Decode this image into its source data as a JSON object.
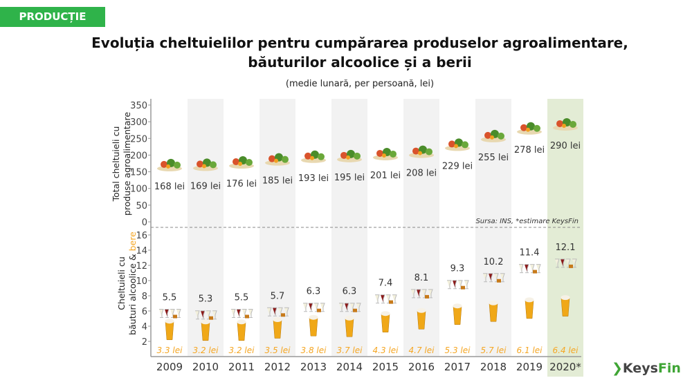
{
  "badge": "PRODUCȚIE",
  "title_line1": "Evoluția cheltuielilor pentru cumpărarea produselor agroalimentare,",
  "title_line2": "băuturilor alcoolice și a berii",
  "subtitle": "(medie lunară, per persoană, lei)",
  "source": "Sursa: INS, *estimare KeysFin",
  "logo": {
    "keys": "Keys",
    "fin": "Fin"
  },
  "colors": {
    "beer": "#f5a623",
    "band_gray": "#f2f2f2",
    "band_highlight": "#e3ecd5",
    "badge": "#2fb34a"
  },
  "chart_data": {
    "type": "pictogram",
    "categories": [
      "2009",
      "2010",
      "2011",
      "2012",
      "2013",
      "2014",
      "2015",
      "2016",
      "2017",
      "2018",
      "2019",
      "2020*"
    ],
    "top": {
      "ylabel_line1": "Total cheltuieli cu",
      "ylabel_line2": "produse agroalimentare",
      "ylim": [
        0,
        350
      ],
      "ticks": [
        0,
        50,
        100,
        150,
        200,
        250,
        300,
        350
      ],
      "values": [
        168,
        169,
        176,
        185,
        193,
        195,
        201,
        208,
        229,
        255,
        278,
        290
      ],
      "labels": [
        "168 lei",
        "169 lei",
        "176 lei",
        "185 lei",
        "193 lei",
        "195 lei",
        "201 lei",
        "208 lei",
        "229 lei",
        "255 lei",
        "278 lei",
        "290 lei"
      ]
    },
    "bottom": {
      "ylabel_line1": "Cheltuieli cu",
      "ylabel_line2a": "băuturi alcoolice & ",
      "ylabel_line2b": "bere",
      "ylim": [
        0,
        16
      ],
      "ticks": [
        2,
        4,
        6,
        8,
        10,
        12,
        14,
        16
      ],
      "series": [
        {
          "name": "băuturi alcoolice",
          "values": [
            5.5,
            5.3,
            5.5,
            5.7,
            6.3,
            6.3,
            7.4,
            8.1,
            9.3,
            10.2,
            11.4,
            12.1
          ],
          "labels": [
            "5.5",
            "5.3",
            "5.5",
            "5.7",
            "6.3",
            "6.3",
            "7.4",
            "8.1",
            "9.3",
            "10.2",
            "11.4",
            "12.1"
          ]
        },
        {
          "name": "bere",
          "values": [
            3.3,
            3.2,
            3.2,
            3.5,
            3.8,
            3.7,
            4.3,
            4.7,
            5.3,
            5.7,
            6.1,
            6.4
          ],
          "labels": [
            "3.3 lei",
            "3.2 lei",
            "3.2 lei",
            "3.5 lei",
            "3.8 lei",
            "3.7 lei",
            "4.3 lei",
            "4.7 lei",
            "5.3 lei",
            "5.7 lei",
            "6.1 lei",
            "6.4 lei"
          ]
        }
      ]
    }
  }
}
